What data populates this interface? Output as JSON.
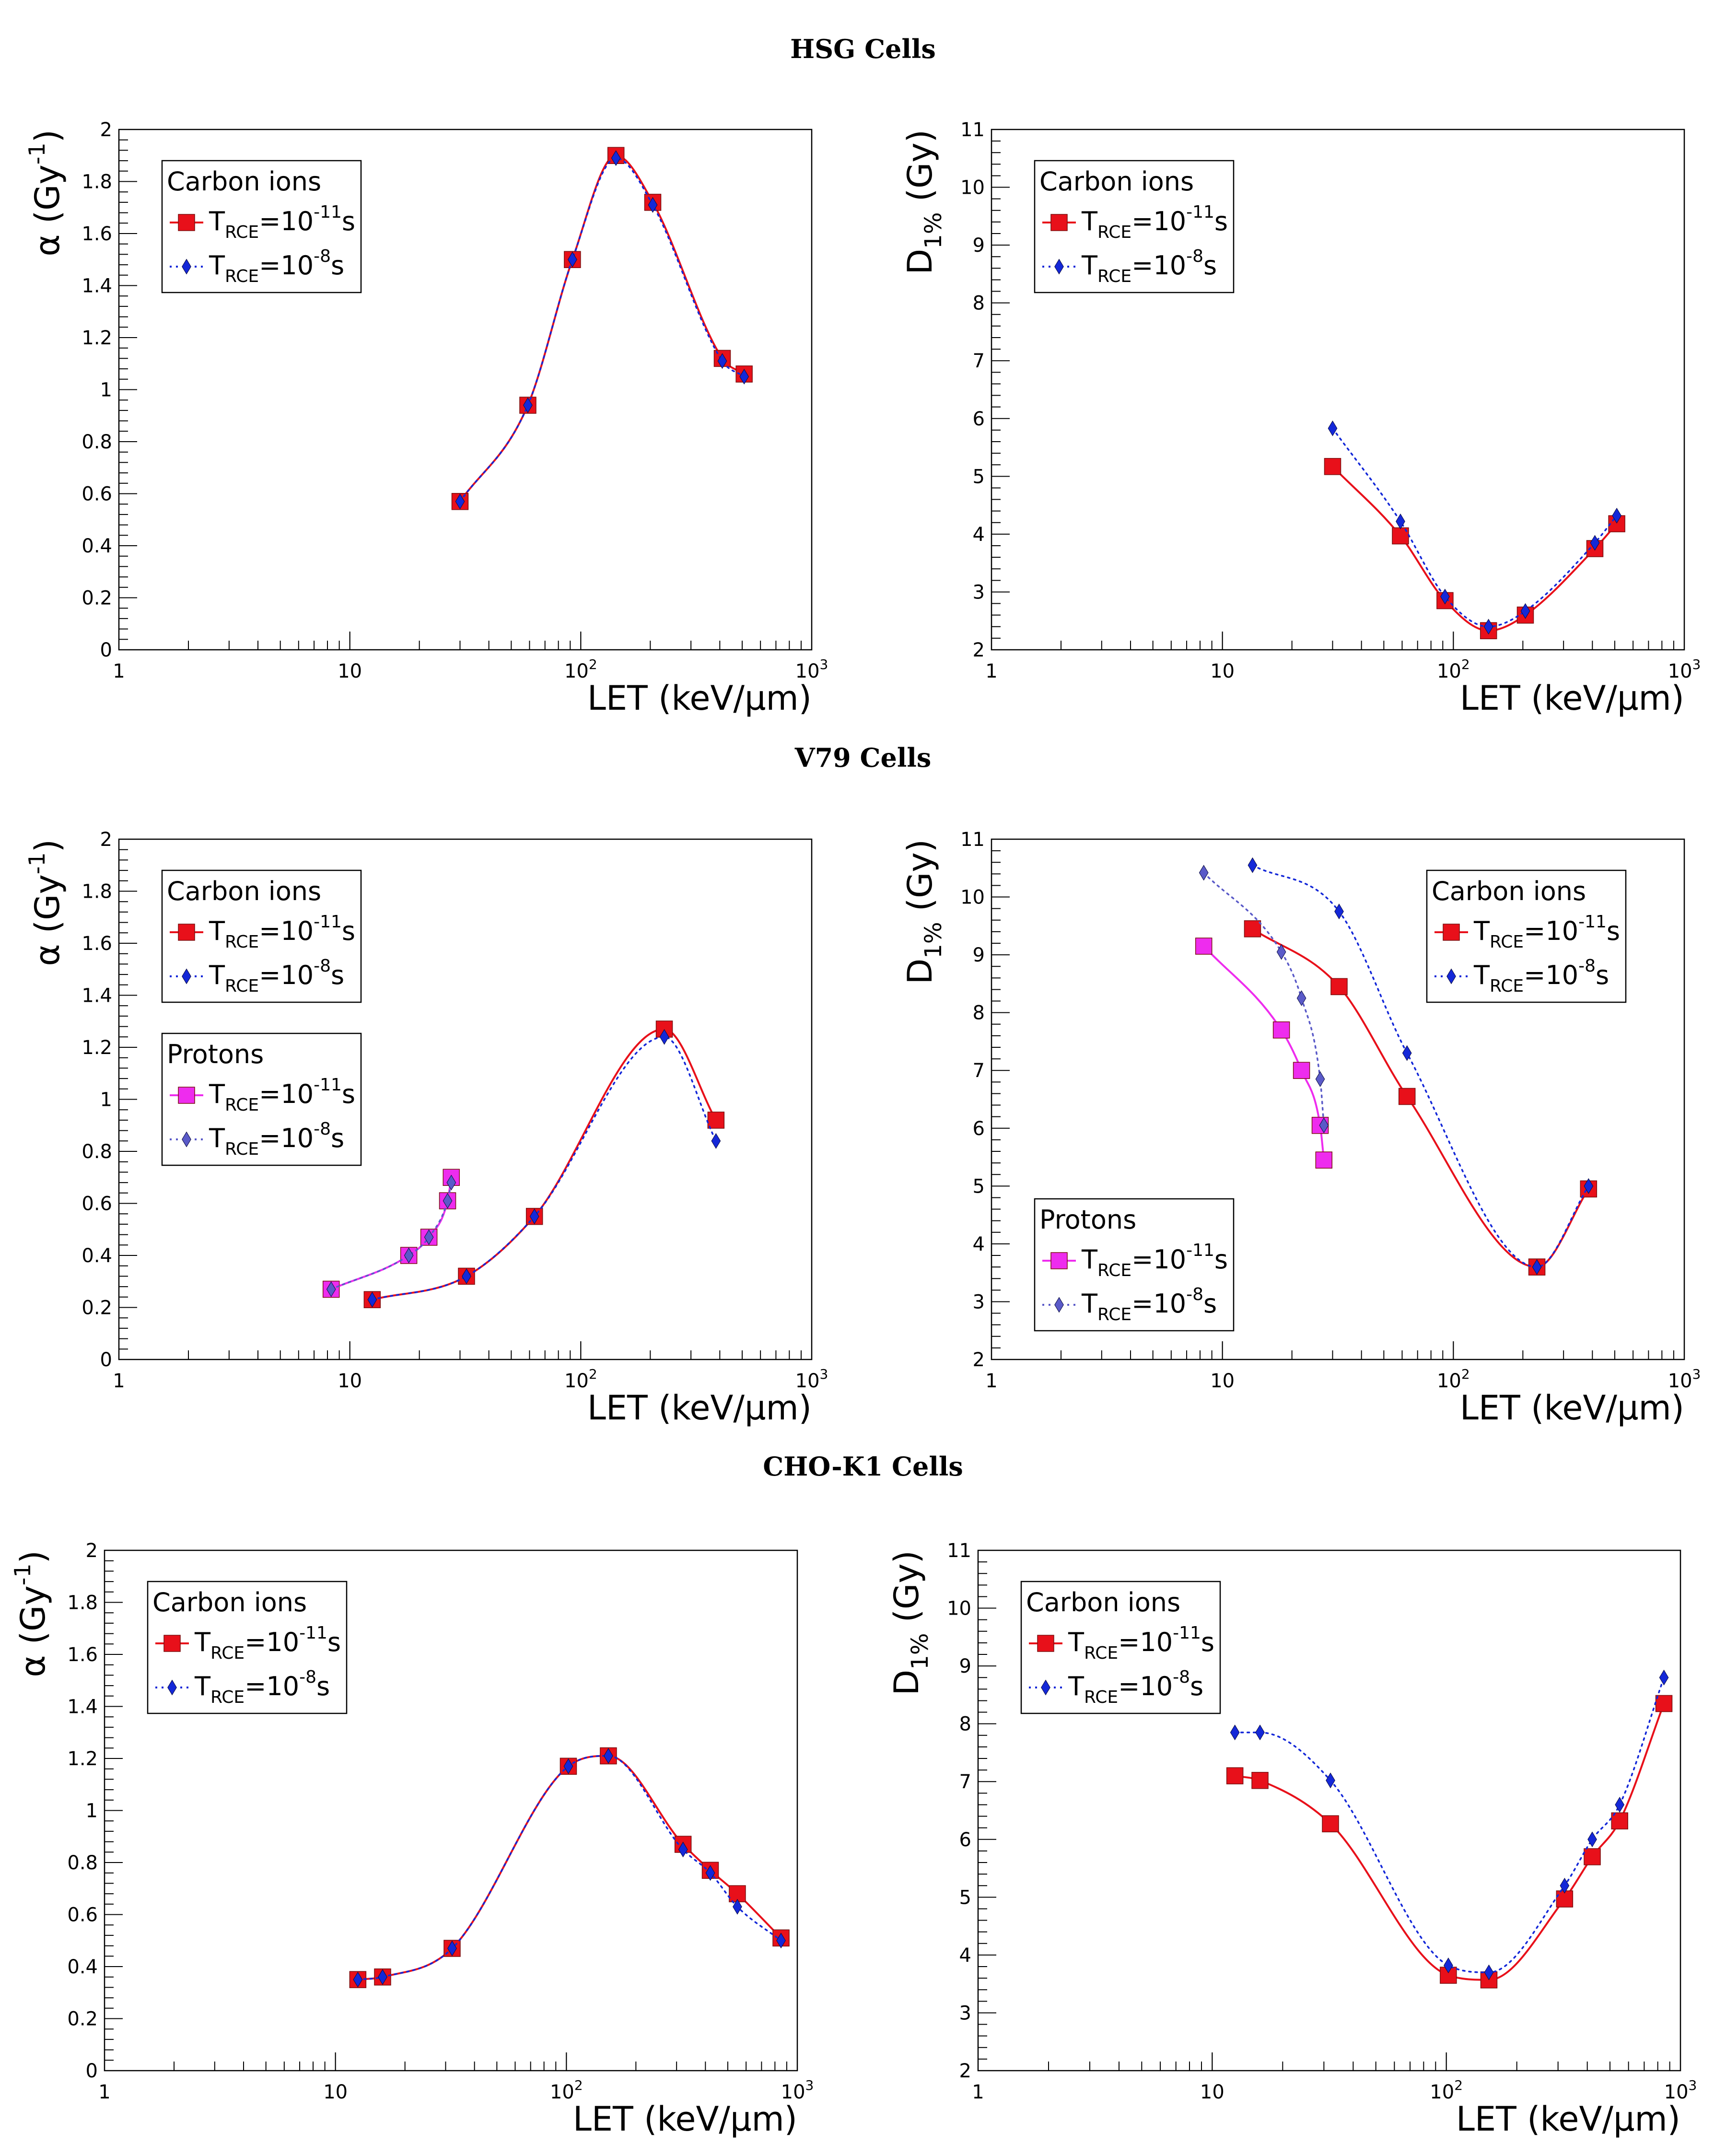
{
  "sections": [
    {
      "title": "HSG Cells"
    },
    {
      "title": "V79 Cells"
    },
    {
      "title": "CHO-K1 Cells"
    }
  ],
  "colors": {
    "carbon_rce_11": "#e8101a",
    "carbon_rce_8": "#1428d8",
    "proton_rce_11": "#ee2cee",
    "proton_rce_8": "#5a5ac8"
  },
  "chart_data": [
    {
      "id": "hsg-alpha",
      "section": "HSG Cells",
      "type": "line",
      "ylabel": "α (Gy⁻¹)",
      "xlabel": "LET (keV/μm)",
      "xscale": "log",
      "xlim": [
        1,
        1000
      ],
      "ylim": [
        0,
        2
      ],
      "xticklabels": [
        "1",
        "10",
        "10²",
        "10³"
      ],
      "yticks": [
        0,
        0.2,
        0.4,
        0.6,
        0.8,
        1,
        1.2,
        1.4,
        1.6,
        1.8,
        2
      ],
      "yticklabels": [
        "0",
        "0.2",
        "0.4",
        "0.6",
        "0.8",
        "1",
        "1.2",
        "1.4",
        "1.6",
        "1.8",
        "2"
      ],
      "legends": [
        {
          "position": "top-left",
          "title": "Carbon ions",
          "entries": [
            {
              "label": "T_RCE=10^-11 s",
              "base": "T",
              "sub": "RCE",
              "mid": "=10",
              "sup": "-11",
              "tail": "s",
              "style": "solid-square",
              "color": "#e8101a"
            },
            {
              "label": "T_RCE=10^-8 s",
              "base": "T",
              "sub": "RCE",
              "mid": "=10",
              "sup": "-8",
              "tail": "s",
              "style": "dotted-diamond",
              "color": "#1428d8"
            }
          ]
        }
      ],
      "series": [
        {
          "name": "Carbon ions, T_RCE=10^-11 s",
          "style": "solid-square",
          "color": "#e8101a",
          "x": [
            30,
            59,
            92,
            142,
            205,
            410,
            510
          ],
          "y": [
            0.57,
            0.94,
            1.5,
            1.9,
            1.72,
            1.12,
            1.06
          ]
        },
        {
          "name": "Carbon ions, T_RCE=10^-8 s",
          "style": "dotted-diamond",
          "color": "#1428d8",
          "x": [
            30,
            59,
            92,
            142,
            205,
            410,
            510
          ],
          "y": [
            0.57,
            0.94,
            1.5,
            1.89,
            1.71,
            1.11,
            1.05
          ]
        }
      ]
    },
    {
      "id": "hsg-d1",
      "section": "HSG Cells",
      "type": "line",
      "ylabel": "D1% (Gy)",
      "xlabel": "LET (keV/μm)",
      "xscale": "log",
      "xlim": [
        1,
        1000
      ],
      "ylim": [
        2,
        11
      ],
      "xticklabels": [
        "1",
        "10",
        "10²",
        "10³"
      ],
      "yticks": [
        2,
        3,
        4,
        5,
        6,
        7,
        8,
        9,
        10,
        11
      ],
      "yticklabels": [
        "2",
        "3",
        "4",
        "5",
        "6",
        "7",
        "8",
        "9",
        "10",
        "11"
      ],
      "legends": [
        {
          "position": "top-left",
          "title": "Carbon ions",
          "entries": [
            {
              "label": "T_RCE=10^-11 s",
              "base": "T",
              "sub": "RCE",
              "mid": "=10",
              "sup": "-11",
              "tail": "s",
              "style": "solid-square",
              "color": "#e8101a"
            },
            {
              "label": "T_RCE=10^-8 s",
              "base": "T",
              "sub": "RCE",
              "mid": "=10",
              "sup": "-8",
              "tail": "s",
              "style": "dotted-diamond",
              "color": "#1428d8"
            }
          ]
        }
      ],
      "series": [
        {
          "name": "Carbon ions, T_RCE=10^-11 s",
          "style": "solid-square",
          "color": "#e8101a",
          "x": [
            30,
            59,
            92,
            142,
            205,
            410,
            510
          ],
          "y": [
            5.17,
            3.97,
            2.85,
            2.33,
            2.6,
            3.75,
            4.18
          ]
        },
        {
          "name": "Carbon ions, T_RCE=10^-8 s",
          "style": "dotted-diamond",
          "color": "#1428d8",
          "x": [
            30,
            59,
            92,
            142,
            205,
            410,
            510
          ],
          "y": [
            5.83,
            4.22,
            2.92,
            2.4,
            2.67,
            3.85,
            4.32
          ]
        }
      ]
    },
    {
      "id": "v79-alpha",
      "section": "V79 Cells",
      "type": "line",
      "ylabel": "α (Gy⁻¹)",
      "xlabel": "LET (keV/μm)",
      "xscale": "log",
      "xlim": [
        1,
        1000
      ],
      "ylim": [
        0,
        2
      ],
      "xticklabels": [
        "1",
        "10",
        "10²",
        "10³"
      ],
      "yticks": [
        0,
        0.2,
        0.4,
        0.6,
        0.8,
        1,
        1.2,
        1.4,
        1.6,
        1.8,
        2
      ],
      "yticklabels": [
        "0",
        "0.2",
        "0.4",
        "0.6",
        "0.8",
        "1",
        "1.2",
        "1.4",
        "1.6",
        "1.8",
        "2"
      ],
      "legends": [
        {
          "position": "top-left",
          "title": "Carbon ions",
          "entries": [
            {
              "label": "T_RCE=10^-11 s",
              "base": "T",
              "sub": "RCE",
              "mid": "=10",
              "sup": "-11",
              "tail": "s",
              "style": "solid-square",
              "color": "#e8101a"
            },
            {
              "label": "T_RCE=10^-8 s",
              "base": "T",
              "sub": "RCE",
              "mid": "=10",
              "sup": "-8",
              "tail": "s",
              "style": "dotted-diamond",
              "color": "#1428d8"
            }
          ]
        },
        {
          "position": "middle-left",
          "title": "Protons",
          "entries": [
            {
              "label": "T_RCE=10^-11 s",
              "base": "T",
              "sub": "RCE",
              "mid": "=10",
              "sup": "-11",
              "tail": "s",
              "style": "solid-square",
              "color": "#ee2cee"
            },
            {
              "label": "T_RCE=10^-8 s",
              "base": "T",
              "sub": "RCE",
              "mid": "=10",
              "sup": "-8",
              "tail": "s",
              "style": "dotted-diamond",
              "color": "#5a5ac8"
            }
          ]
        }
      ],
      "series": [
        {
          "name": "Carbon ions, T_RCE=10^-11 s",
          "style": "solid-square",
          "color": "#e8101a",
          "x": [
            12.5,
            32,
            63,
            230,
            385
          ],
          "y": [
            0.23,
            0.32,
            0.55,
            1.27,
            0.92
          ]
        },
        {
          "name": "Carbon ions, T_RCE=10^-8 s",
          "style": "dotted-diamond",
          "color": "#1428d8",
          "x": [
            12.5,
            32,
            63,
            230,
            385
          ],
          "y": [
            0.23,
            0.32,
            0.55,
            1.24,
            0.84
          ]
        },
        {
          "name": "Protons, T_RCE=10^-11 s",
          "style": "solid-square",
          "color": "#ee2cee",
          "x": [
            8.3,
            18,
            22,
            26.5,
            27.5
          ],
          "y": [
            0.27,
            0.4,
            0.47,
            0.61,
            0.7
          ]
        },
        {
          "name": "Protons, T_RCE=10^-8 s",
          "style": "dotted-diamond",
          "color": "#5a5ac8",
          "x": [
            8.3,
            18,
            22,
            26.5,
            27.5
          ],
          "y": [
            0.27,
            0.4,
            0.47,
            0.61,
            0.68
          ]
        }
      ]
    },
    {
      "id": "v79-d1",
      "section": "V79 Cells",
      "type": "line",
      "ylabel": "D1% (Gy)",
      "xlabel": "LET (keV/μm)",
      "xscale": "log",
      "xlim": [
        1,
        1000
      ],
      "ylim": [
        2,
        11
      ],
      "xticklabels": [
        "1",
        "10",
        "10²",
        "10³"
      ],
      "yticks": [
        2,
        3,
        4,
        5,
        6,
        7,
        8,
        9,
        10,
        11
      ],
      "yticklabels": [
        "2",
        "3",
        "4",
        "5",
        "6",
        "7",
        "8",
        "9",
        "10",
        "11"
      ],
      "legends": [
        {
          "position": "top-right",
          "title": "Carbon ions",
          "entries": [
            {
              "label": "T_RCE=10^-11 s",
              "base": "T",
              "sub": "RCE",
              "mid": "=10",
              "sup": "-11",
              "tail": "s",
              "style": "solid-square",
              "color": "#e8101a"
            },
            {
              "label": "T_RCE=10^-8 s",
              "base": "T",
              "sub": "RCE",
              "mid": "=10",
              "sup": "-8",
              "tail": "s",
              "style": "dotted-diamond",
              "color": "#1428d8"
            }
          ]
        },
        {
          "position": "bottom-left",
          "title": "Protons",
          "entries": [
            {
              "label": "T_RCE=10^-11 s",
              "base": "T",
              "sub": "RCE",
              "mid": "=10",
              "sup": "-11",
              "tail": "s",
              "style": "solid-square",
              "color": "#ee2cee"
            },
            {
              "label": "T_RCE=10^-8 s",
              "base": "T",
              "sub": "RCE",
              "mid": "=10",
              "sup": "-8",
              "tail": "s",
              "style": "dotted-diamond",
              "color": "#5a5ac8"
            }
          ]
        }
      ],
      "series": [
        {
          "name": "Carbon ions, T_RCE=10^-11 s",
          "style": "solid-square",
          "color": "#e8101a",
          "x": [
            13.5,
            32,
            63,
            230,
            385
          ],
          "y": [
            9.45,
            8.45,
            6.55,
            3.6,
            4.95
          ]
        },
        {
          "name": "Carbon ions, T_RCE=10^-8 s",
          "style": "dotted-diamond",
          "color": "#1428d8",
          "x": [
            13.5,
            32,
            63,
            230,
            385
          ],
          "y": [
            10.55,
            9.75,
            7.3,
            3.6,
            5.0
          ]
        },
        {
          "name": "Protons, T_RCE=10^-11 s",
          "style": "solid-square",
          "color": "#ee2cee",
          "x": [
            8.3,
            18,
            22,
            26.5,
            27.5
          ],
          "y": [
            9.15,
            7.7,
            7.0,
            6.05,
            5.45
          ]
        },
        {
          "name": "Protons, T_RCE=10^-8 s",
          "style": "dotted-diamond",
          "color": "#5a5ac8",
          "x": [
            8.3,
            18,
            22,
            26.5,
            27.5
          ],
          "y": [
            10.42,
            9.05,
            8.25,
            6.85,
            6.05
          ]
        }
      ]
    },
    {
      "id": "cho-alpha",
      "section": "CHO-K1 Cells",
      "type": "line",
      "ylabel": "α (Gy⁻¹)",
      "xlabel": "LET (keV/μm)",
      "xscale": "log",
      "xlim": [
        1,
        1000
      ],
      "ylim": [
        0,
        2
      ],
      "xticklabels": [
        "1",
        "10",
        "10²",
        "10³"
      ],
      "yticks": [
        0,
        0.2,
        0.4,
        0.6,
        0.8,
        1,
        1.2,
        1.4,
        1.6,
        1.8,
        2
      ],
      "yticklabels": [
        "0",
        "0.2",
        "0.4",
        "0.6",
        "0.8",
        "1",
        "1.2",
        "1.4",
        "1.6",
        "1.8",
        "2"
      ],
      "legends": [
        {
          "position": "top-left",
          "title": "Carbon ions",
          "entries": [
            {
              "label": "T_RCE=10^-11 s",
              "base": "T",
              "sub": "RCE",
              "mid": "=10",
              "sup": "-11",
              "tail": "s",
              "style": "solid-square",
              "color": "#e8101a"
            },
            {
              "label": "T_RCE=10^-8 s",
              "base": "T",
              "sub": "RCE",
              "mid": "=10",
              "sup": "-8",
              "tail": "s",
              "style": "dotted-diamond",
              "color": "#1428d8"
            }
          ]
        }
      ],
      "series": [
        {
          "name": "Carbon ions, T_RCE=10^-11 s",
          "style": "solid-square",
          "color": "#e8101a",
          "x": [
            12.5,
            16,
            32,
            102,
            152,
            320,
            420,
            550,
            850
          ],
          "y": [
            0.35,
            0.36,
            0.47,
            1.17,
            1.21,
            0.87,
            0.77,
            0.68,
            0.51
          ]
        },
        {
          "name": "Carbon ions, T_RCE=10^-8 s",
          "style": "dotted-diamond",
          "color": "#1428d8",
          "x": [
            12.5,
            16,
            32,
            102,
            152,
            320,
            420,
            550,
            850
          ],
          "y": [
            0.35,
            0.36,
            0.47,
            1.17,
            1.21,
            0.85,
            0.76,
            0.63,
            0.5
          ]
        }
      ]
    },
    {
      "id": "cho-d1",
      "section": "CHO-K1 Cells",
      "type": "line",
      "ylabel": "D1% (Gy)",
      "xlabel": "LET (keV/μm)",
      "xscale": "log",
      "xlim": [
        1,
        1000
      ],
      "ylim": [
        2,
        11
      ],
      "xticklabels": [
        "1",
        "10",
        "10²",
        "10³"
      ],
      "yticks": [
        2,
        3,
        4,
        5,
        6,
        7,
        8,
        9,
        10,
        11
      ],
      "yticklabels": [
        "2",
        "3",
        "4",
        "5",
        "6",
        "7",
        "8",
        "9",
        "10",
        "11"
      ],
      "legends": [
        {
          "position": "top-left",
          "title": "Carbon ions",
          "entries": [
            {
              "label": "T_RCE=10^-11 s",
              "base": "T",
              "sub": "RCE",
              "mid": "=10",
              "sup": "-11",
              "tail": "s",
              "style": "solid-square",
              "color": "#e8101a"
            },
            {
              "label": "T_RCE=10^-8 s",
              "base": "T",
              "sub": "RCE",
              "mid": "=10",
              "sup": "-8",
              "tail": "s",
              "style": "dotted-diamond",
              "color": "#1428d8"
            }
          ]
        }
      ],
      "series": [
        {
          "name": "Carbon ions, T_RCE=10^-11 s",
          "style": "solid-square",
          "color": "#e8101a",
          "x": [
            12.5,
            16,
            32,
            102,
            152,
            320,
            420,
            550,
            850
          ],
          "y": [
            7.1,
            7.02,
            6.27,
            3.65,
            3.57,
            4.97,
            5.7,
            6.32,
            8.35
          ]
        },
        {
          "name": "Carbon ions, T_RCE=10^-8 s",
          "style": "dotted-diamond",
          "color": "#1428d8",
          "x": [
            12.5,
            16,
            32,
            102,
            152,
            320,
            420,
            550,
            850
          ],
          "y": [
            7.85,
            7.85,
            7.02,
            3.82,
            3.7,
            5.2,
            6.0,
            6.6,
            8.8
          ]
        }
      ]
    }
  ]
}
